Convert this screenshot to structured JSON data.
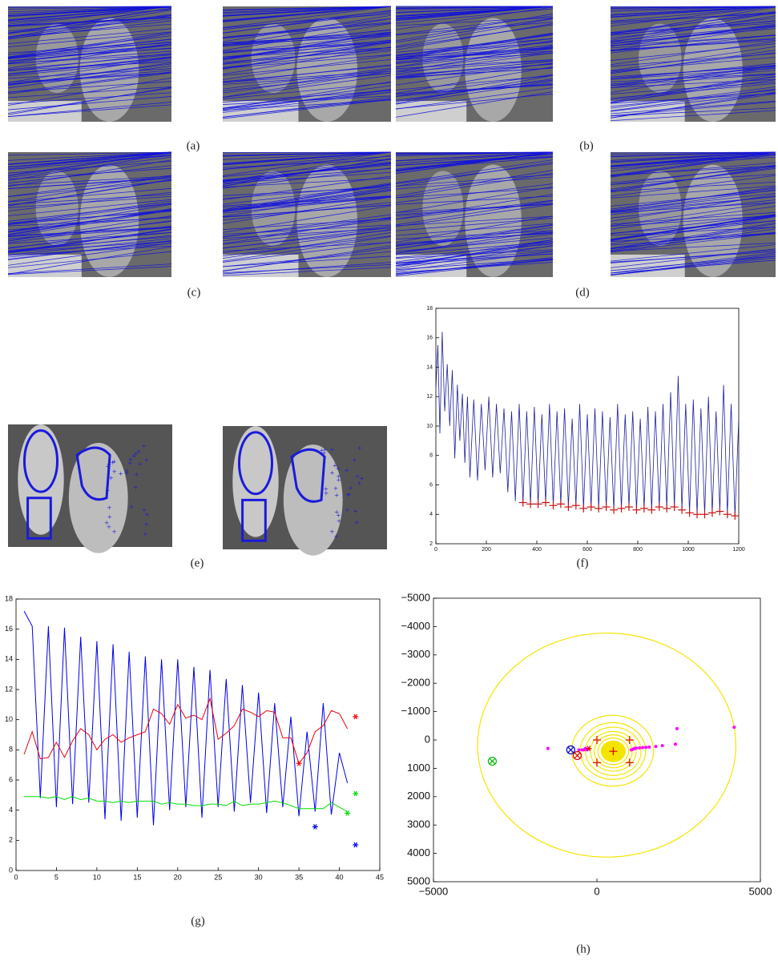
{
  "captions": [
    "(a)",
    "(b)",
    "(c)",
    "(d)",
    "(e)",
    "(f)",
    "(g)",
    "(h)"
  ],
  "chart_data": [
    {
      "type": "line",
      "x": [
        0,
        8,
        16,
        25,
        35,
        45,
        55,
        65,
        75,
        85,
        95,
        105,
        115,
        125,
        135,
        150,
        165,
        180,
        195,
        210,
        225,
        240,
        255,
        270,
        285,
        300,
        315,
        330,
        345,
        360,
        375,
        390,
        405,
        420,
        435,
        450,
        465,
        480,
        495,
        510,
        525,
        540,
        555,
        570,
        585,
        600,
        615,
        630,
        645,
        660,
        675,
        690,
        705,
        720,
        735,
        750,
        765,
        780,
        795,
        810,
        825,
        840,
        855,
        870,
        885,
        900,
        915,
        930,
        945,
        960,
        975,
        990,
        1005,
        1020,
        1035,
        1050,
        1065,
        1080,
        1095,
        1110,
        1125,
        1140,
        1155,
        1170,
        1185,
        1200
      ],
      "series": [
        {
          "color": "#1f1f9c",
          "values": [
            12.5,
            15.5,
            9.5,
            16.4,
            11,
            14.2,
            10,
            13.8,
            7.8,
            12.8,
            9,
            12.2,
            7.5,
            12,
            6.5,
            11.8,
            6.3,
            11.5,
            7,
            12,
            6.5,
            11.5,
            6.8,
            11.2,
            5.5,
            11,
            4.9,
            11.5,
            4.8,
            11,
            4.7,
            11.3,
            4.7,
            10.8,
            4.8,
            11.5,
            4.6,
            11,
            4.7,
            11.2,
            4.5,
            10.5,
            4.6,
            11.5,
            4.4,
            10.8,
            4.5,
            11.2,
            4.4,
            11,
            4.5,
            10.6,
            4.3,
            11.5,
            4.4,
            10.8,
            4.5,
            11,
            4.3,
            10.5,
            4.4,
            11.3,
            4.3,
            11,
            4.5,
            11.5,
            4.4,
            12.3,
            4.5,
            13.4,
            4.3,
            11.5,
            4.1,
            11.8,
            4.0,
            11.2,
            4.0,
            12,
            4.1,
            11,
            4.2,
            12.8,
            4.0,
            11.5,
            3.9,
            10.5
          ]
        },
        {
          "color": "#cc1111",
          "marker": "+",
          "x": [
            345,
            375,
            405,
            435,
            465,
            495,
            525,
            555,
            585,
            615,
            645,
            675,
            705,
            735,
            765,
            795,
            825,
            855,
            885,
            915,
            945,
            975,
            1005,
            1035,
            1065,
            1095,
            1125,
            1155,
            1185
          ],
          "values": [
            4.8,
            4.7,
            4.7,
            4.8,
            4.6,
            4.7,
            4.5,
            4.6,
            4.4,
            4.5,
            4.4,
            4.5,
            4.3,
            4.4,
            4.5,
            4.3,
            4.4,
            4.3,
            4.5,
            4.4,
            4.5,
            4.3,
            4.1,
            4.0,
            4.0,
            4.1,
            4.2,
            4.0,
            3.9
          ]
        }
      ],
      "xlim": [
        0,
        1200
      ],
      "xticks": [
        0,
        200,
        400,
        600,
        800,
        1000,
        1200
      ],
      "ylim": [
        2,
        18
      ],
      "yticks": [
        2,
        4,
        6,
        8,
        10,
        12,
        14,
        16,
        18
      ]
    },
    {
      "type": "line",
      "x": [
        1,
        2,
        3,
        4,
        5,
        6,
        7,
        8,
        9,
        10,
        11,
        12,
        13,
        14,
        15,
        16,
        17,
        18,
        19,
        20,
        21,
        22,
        23,
        24,
        25,
        26,
        27,
        28,
        29,
        30,
        31,
        32,
        33,
        34,
        35,
        36,
        37,
        38,
        39,
        40,
        41
      ],
      "series": [
        {
          "color": "#0000ee",
          "values": [
            17.2,
            16.2,
            4.8,
            16.2,
            4.2,
            16.1,
            4.4,
            15.5,
            4.5,
            15.2,
            3.4,
            15,
            3.3,
            14.5,
            3.5,
            14.2,
            3,
            14,
            4,
            14,
            4.2,
            13.5,
            3.5,
            13.3,
            4.2,
            12.7,
            3.9,
            12.3,
            4.5,
            11.8,
            3.8,
            11.1,
            4.2,
            10.2,
            3.6,
            9.2,
            3.9,
            11.1,
            3.7,
            7.8,
            5.8
          ]
        },
        {
          "color": "#ee0000",
          "values": [
            7.7,
            9.2,
            7.4,
            7.5,
            8.5,
            7.5,
            8.6,
            9.4,
            9,
            8,
            8.7,
            9,
            8.5,
            8.8,
            9,
            9.2,
            10.7,
            10.4,
            9.7,
            11,
            10.1,
            10.3,
            10,
            11.4,
            8.7,
            9.1,
            9.6,
            10.7,
            10.5,
            10.2,
            10.6,
            10.5,
            8.8,
            8.8,
            7.1,
            7.8,
            9.2,
            9.6,
            10.6,
            10.4,
            9.4
          ]
        },
        {
          "color": "#00dd00",
          "values": [
            4.9,
            4.9,
            4.9,
            4.8,
            4.9,
            4.7,
            4.9,
            4.7,
            4.8,
            4.6,
            4.6,
            4.5,
            4.6,
            4.5,
            4.6,
            4.6,
            4.6,
            4.4,
            4.5,
            4.4,
            4.4,
            4.3,
            4.3,
            4.4,
            4.4,
            4.3,
            4.6,
            4.3,
            4.4,
            4.4,
            4.5,
            4.6,
            4.5,
            4.3,
            4.1,
            4.1,
            4.1,
            4.1,
            4.5,
            4.2,
            3.9
          ]
        },
        {
          "color": "#ee0000",
          "marker": "*",
          "x": [
            35,
            42
          ],
          "values": [
            7.1,
            10.2
          ]
        },
        {
          "color": "#0000ee",
          "marker": "*",
          "x": [
            37,
            42
          ],
          "values": [
            2.9,
            1.7
          ]
        },
        {
          "color": "#00dd00",
          "marker": "*",
          "x": [
            41,
            42
          ],
          "values": [
            3.8,
            5.1
          ]
        }
      ],
      "xlim": [
        0,
        45
      ],
      "xticks": [
        0,
        5,
        10,
        15,
        20,
        25,
        30,
        35,
        40,
        45
      ],
      "ylim": [
        0,
        18
      ],
      "yticks": [
        0,
        2,
        4,
        6,
        8,
        10,
        12,
        14,
        16,
        18
      ]
    },
    {
      "type": "scatter",
      "y_reversed": true,
      "contours": {
        "color": "#f5e400",
        "levels": [
          {
            "x": 300,
            "y": 180,
            "r": 3950
          },
          {
            "x": 480,
            "y": 380,
            "r": 1250
          },
          {
            "x": 490,
            "y": 390,
            "r": 1000
          },
          {
            "x": 500,
            "y": 400,
            "r": 850
          },
          {
            "x": 500,
            "y": 400,
            "r": 700
          },
          {
            "x": 500,
            "y": 400,
            "r": 580
          },
          {
            "x": 500,
            "y": 400,
            "r": 470
          }
        ],
        "filled": {
          "x": 500,
          "y": 400,
          "r": 380
        }
      },
      "series": [
        {
          "color": "#ff00ff",
          "marker": "dot",
          "x": [
            -1500,
            -550,
            -450,
            -400,
            -350,
            -300,
            1050,
            1100,
            1150,
            1200,
            1300,
            1400,
            1500,
            1600,
            1800,
            2000,
            2400,
            2450,
            4200
          ],
          "values": [
            300,
            350,
            350,
            350,
            300,
            350,
            350,
            330,
            300,
            290,
            280,
            270,
            260,
            250,
            230,
            200,
            150,
            -400,
            -450
          ]
        },
        {
          "color": "#dd0000",
          "marker": "+",
          "x": [
            0,
            1000,
            500,
            0,
            1000
          ],
          "values": [
            0,
            0,
            400,
            800,
            800
          ]
        },
        {
          "color": "#dd0000",
          "marker": "*",
          "x": [
            -250
          ],
          "values": [
            300
          ]
        },
        {
          "color": "#0000cc",
          "marker": "otimes",
          "x": [
            -800
          ],
          "values": [
            350
          ]
        },
        {
          "color": "#dd0000",
          "marker": "otimes",
          "x": [
            -600
          ],
          "values": [
            550
          ]
        },
        {
          "color": "#00bb00",
          "marker": "otimes",
          "x": [
            -3200
          ],
          "values": [
            750
          ]
        }
      ],
      "xlim": [
        -5000,
        5000
      ],
      "xticks": [
        {
          "value": -5000,
          "label": "−5000"
        },
        0,
        5000
      ],
      "ylim": [
        -5000,
        5000
      ],
      "yticks": [
        {
          "value": -5000,
          "label": "−5000"
        },
        {
          "value": -4000,
          "label": "−4000"
        },
        {
          "value": -3000,
          "label": "−3000"
        },
        {
          "value": -2000,
          "label": "−2000"
        },
        {
          "value": -1000,
          "label": "−1000"
        },
        0,
        1000,
        2000,
        3000,
        4000,
        5000
      ]
    }
  ]
}
